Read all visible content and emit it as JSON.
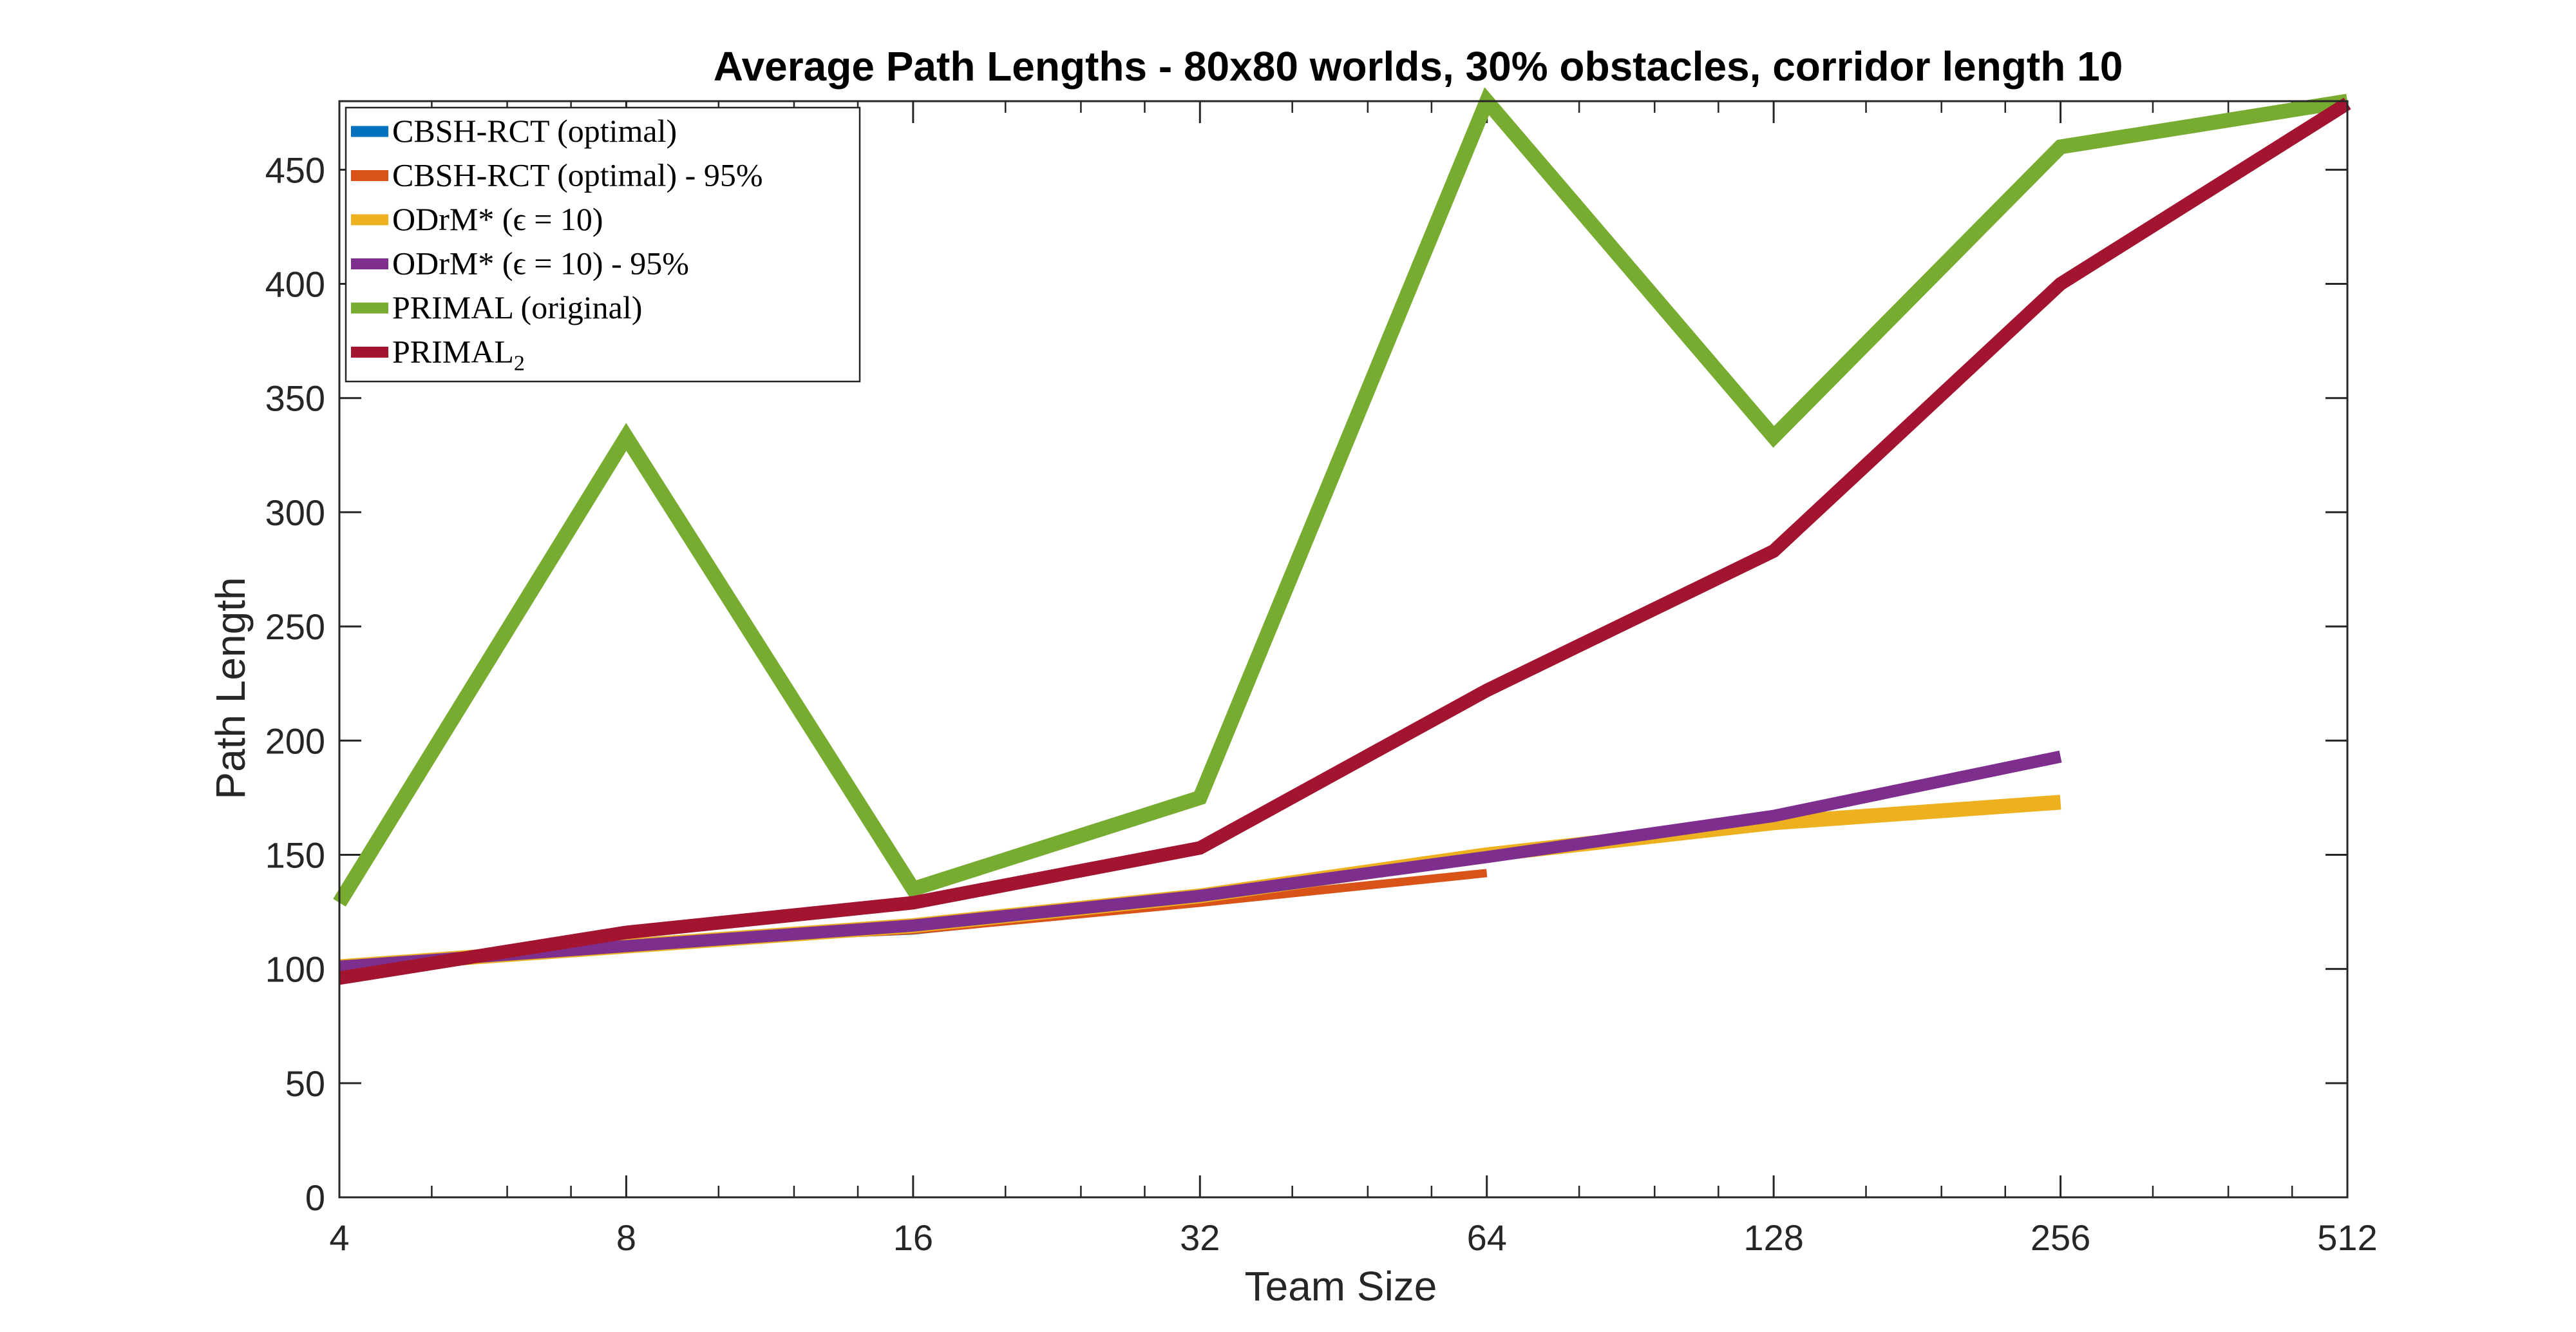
{
  "chart_data": {
    "type": "line",
    "title": "Average Path Lengths - 80x80 worlds, 30% obstacles, corridor length 10",
    "xlabel": "Team Size",
    "ylabel": "Path Length",
    "x_scale": "log2",
    "x_ticks": [
      "4",
      "8",
      "16",
      "32",
      "64",
      "128",
      "256",
      "512"
    ],
    "x_tick_values": [
      4,
      8,
      16,
      32,
      64,
      128,
      256,
      512
    ],
    "xlim": [
      4,
      512
    ],
    "ylim": [
      0,
      480
    ],
    "y_ticks": [
      "0",
      "50",
      "100",
      "150",
      "200",
      "250",
      "300",
      "350",
      "400",
      "450"
    ],
    "y_tick_values": [
      0,
      50,
      100,
      150,
      200,
      250,
      300,
      350,
      400,
      450
    ],
    "grid": false,
    "legend_position": "top-left",
    "series": [
      {
        "name": "CBSH-RCT (optimal)",
        "color": "#0072BD",
        "x": [
          4,
          8,
          16,
          32
        ],
        "y": [
          101,
          111,
          116,
          129
        ]
      },
      {
        "name": "CBSH-RCT (optimal) - 95%",
        "color": "#D95319",
        "x": [
          4,
          8,
          16,
          32,
          64
        ],
        "y": [
          101,
          111,
          117,
          129,
          142
        ]
      },
      {
        "name": "ODrM* (ϵ = 10)",
        "color": "#EDB120",
        "x": [
          4,
          8,
          16,
          32,
          64,
          128,
          256
        ],
        "y": [
          101,
          110,
          119,
          132,
          150,
          164,
          173
        ]
      },
      {
        "name": "ODrM* (ϵ = 10) - 95%",
        "color": "#7E2F8E",
        "x": [
          4,
          8,
          16,
          32,
          64,
          128,
          256
        ],
        "y": [
          101,
          110,
          119,
          132,
          149,
          167,
          193
        ]
      },
      {
        "name": "PRIMAL (original)",
        "color": "#77AC30",
        "x": [
          4,
          8,
          16,
          32,
          64,
          128,
          256,
          512
        ],
        "y": [
          129,
          333,
          135,
          175,
          480,
          333,
          460,
          480
        ]
      },
      {
        "name": "PRIMAL",
        "name_subscript": "2",
        "color": "#A2142F",
        "x": [
          4,
          8,
          16,
          32,
          64,
          128,
          256,
          512
        ],
        "y": [
          96,
          116,
          129,
          153,
          222,
          283,
          400,
          479
        ]
      }
    ]
  }
}
